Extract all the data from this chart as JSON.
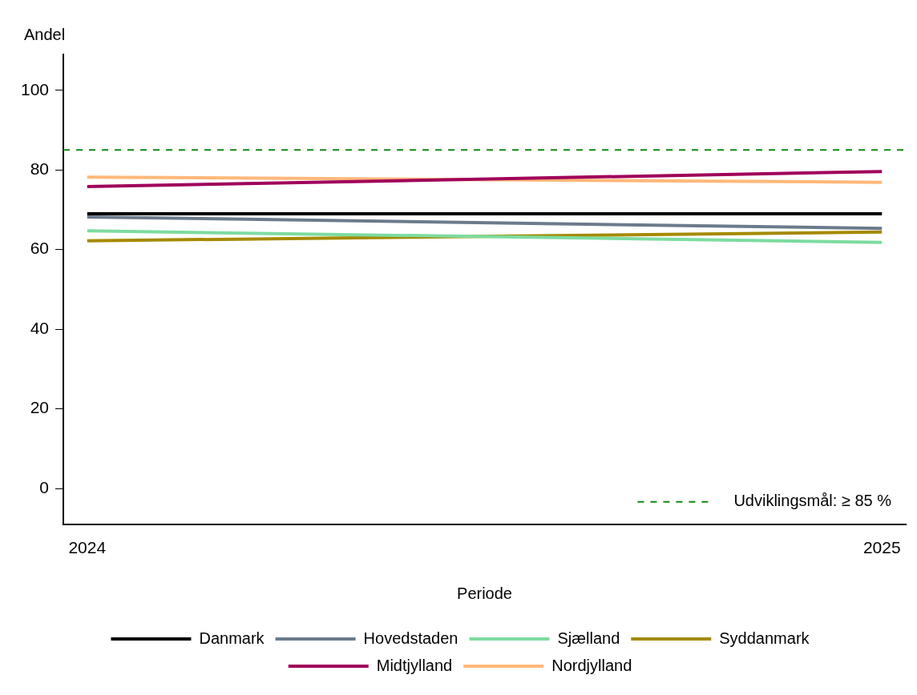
{
  "chart_data": {
    "type": "line",
    "xlabel": "Periode",
    "ylabel": "Andel",
    "x": [
      2024,
      2025
    ],
    "xlim": [
      2023.97,
      2025.03
    ],
    "xticks": [
      2024,
      2025
    ],
    "ylim": [
      -9,
      109
    ],
    "yticks": [
      0,
      20,
      40,
      60,
      80,
      100
    ],
    "grid": false,
    "legend": "bottom",
    "marker": "none",
    "line_style": "solid",
    "series": [
      {
        "name": "Danmark",
        "color": "#000000",
        "values": [
          69,
          69
        ]
      },
      {
        "name": "Hovedstaden",
        "color": "#6b7b8c",
        "values": [
          68.2,
          65.3
        ]
      },
      {
        "name": "Sjælland",
        "color": "#7ddba0",
        "values": [
          64.7,
          61.8
        ]
      },
      {
        "name": "Syddanmark",
        "color": "#a58a00",
        "values": [
          62.2,
          64.4
        ]
      },
      {
        "name": "Midtjylland",
        "color": "#a0005a",
        "values": [
          75.8,
          79.6
        ]
      },
      {
        "name": "Nordjylland",
        "color": "#ffb87a",
        "values": [
          78.2,
          76.9
        ]
      }
    ],
    "ref_lines": [
      {
        "axis": "y",
        "value": 85,
        "label": "Udviklingsmål: ≥ 85 %",
        "color": "#118811",
        "line_style": "dashed"
      }
    ]
  }
}
